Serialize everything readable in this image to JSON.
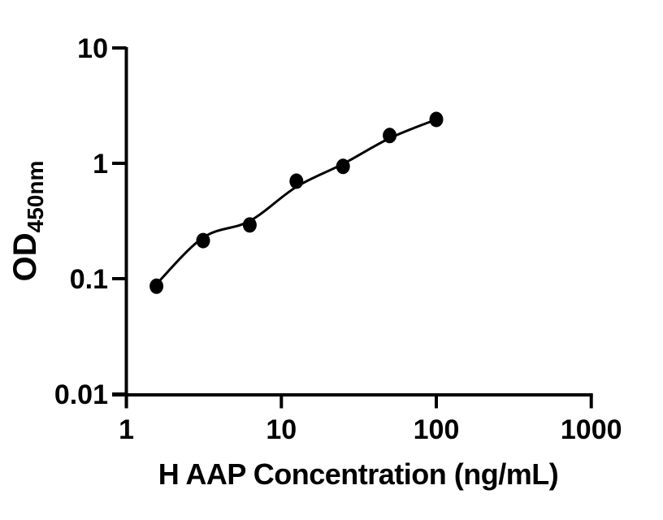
{
  "figure": {
    "background": "#ffffff",
    "ink_color": "#000000"
  },
  "chart_data": {
    "type": "scatter",
    "title": "",
    "xlabel": "H AAP Concentration (ng/mL)",
    "ylabel": "OD",
    "ylabel_sub": "450nm",
    "x_scale": "log10",
    "y_scale": "log10",
    "xlim": [
      1,
      1000
    ],
    "ylim": [
      0.01,
      10
    ],
    "x_ticks": [
      1,
      10,
      100,
      1000
    ],
    "x_tick_labels": [
      "1",
      "10",
      "100",
      "1000"
    ],
    "y_ticks": [
      10,
      1,
      0.1,
      0.01
    ],
    "y_tick_labels": [
      "10",
      "1",
      "0.1",
      "0.01"
    ],
    "grid": false,
    "legend": null,
    "series": [
      {
        "name": "standard-points",
        "type": "scatter",
        "marker": "filled-circle",
        "color": "#000000",
        "points": [
          [
            1.563,
            0.086
          ],
          [
            3.125,
            0.214
          ],
          [
            6.25,
            0.292
          ],
          [
            12.5,
            0.7
          ],
          [
            25,
            0.94
          ],
          [
            50,
            1.74
          ],
          [
            100,
            2.4
          ]
        ]
      },
      {
        "name": "fit-curve",
        "type": "line",
        "color": "#000000",
        "points": [
          [
            1.563,
            0.09
          ],
          [
            3.125,
            0.227
          ],
          [
            6.25,
            0.316
          ],
          [
            12.5,
            0.625
          ],
          [
            25,
            0.988
          ],
          [
            50,
            1.65
          ],
          [
            100,
            2.4
          ]
        ]
      }
    ]
  }
}
